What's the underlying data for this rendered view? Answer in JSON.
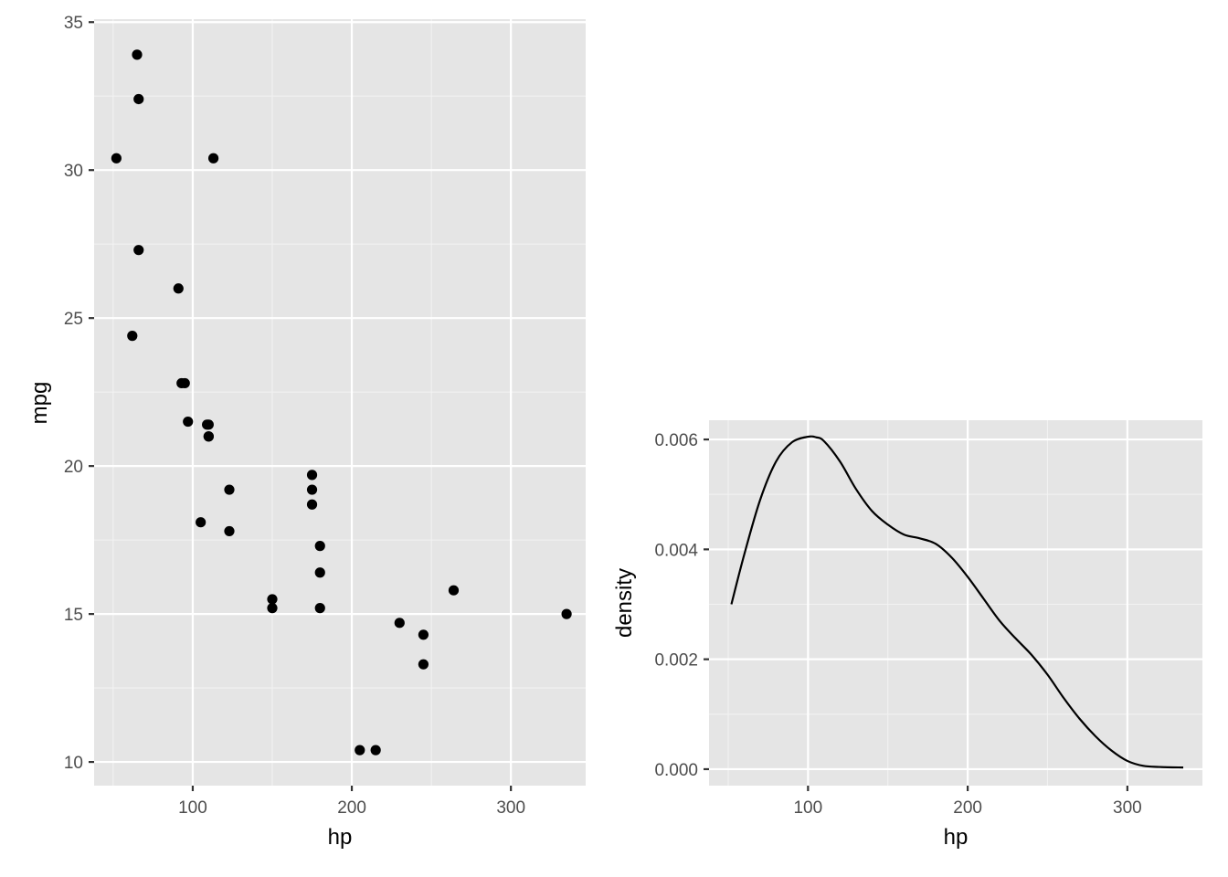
{
  "colors": {
    "panel_background": "#E5E5E5",
    "grid_major": "#FFFFFF",
    "grid_minor": "#F2F2F2",
    "tick_text": "#4D4D4D",
    "axis_ticks": "#333333",
    "marks": "#000000"
  },
  "chart_data": [
    {
      "type": "scatter",
      "xlabel": "hp",
      "ylabel": "mpg",
      "xlim": [
        38,
        347
      ],
      "ylim": [
        9.2,
        35.1
      ],
      "xticks": [
        100,
        200,
        300
      ],
      "xticklabels": [
        "100",
        "200",
        "300"
      ],
      "yticks": [
        10,
        15,
        20,
        25,
        30,
        35
      ],
      "yticklabels": [
        "10",
        "15",
        "20",
        "25",
        "30",
        "35"
      ],
      "grid": true,
      "points": [
        {
          "x": 110,
          "y": 21.0
        },
        {
          "x": 110,
          "y": 21.0
        },
        {
          "x": 93,
          "y": 22.8
        },
        {
          "x": 110,
          "y": 21.4
        },
        {
          "x": 175,
          "y": 18.7
        },
        {
          "x": 105,
          "y": 18.1
        },
        {
          "x": 245,
          "y": 14.3
        },
        {
          "x": 62,
          "y": 24.4
        },
        {
          "x": 95,
          "y": 22.8
        },
        {
          "x": 123,
          "y": 19.2
        },
        {
          "x": 123,
          "y": 17.8
        },
        {
          "x": 180,
          "y": 16.4
        },
        {
          "x": 180,
          "y": 17.3
        },
        {
          "x": 180,
          "y": 15.2
        },
        {
          "x": 205,
          "y": 10.4
        },
        {
          "x": 215,
          "y": 10.4
        },
        {
          "x": 230,
          "y": 14.7
        },
        {
          "x": 66,
          "y": 32.4
        },
        {
          "x": 52,
          "y": 30.4
        },
        {
          "x": 65,
          "y": 33.9
        },
        {
          "x": 97,
          "y": 21.5
        },
        {
          "x": 150,
          "y": 15.5
        },
        {
          "x": 150,
          "y": 15.2
        },
        {
          "x": 245,
          "y": 13.3
        },
        {
          "x": 175,
          "y": 19.2
        },
        {
          "x": 66,
          "y": 27.3
        },
        {
          "x": 91,
          "y": 26.0
        },
        {
          "x": 113,
          "y": 30.4
        },
        {
          "x": 264,
          "y": 15.8
        },
        {
          "x": 175,
          "y": 19.7
        },
        {
          "x": 335,
          "y": 15.0
        },
        {
          "x": 109,
          "y": 21.4
        }
      ]
    },
    {
      "type": "line",
      "xlabel": "hp",
      "ylabel": "density",
      "xlim": [
        38,
        347
      ],
      "ylim": [
        -0.0003,
        0.00635
      ],
      "xticks": [
        100,
        200,
        300
      ],
      "xticklabels": [
        "100",
        "200",
        "300"
      ],
      "yticks": [
        0.0,
        0.002,
        0.004,
        0.006
      ],
      "yticklabels": [
        "0.000",
        "0.002",
        "0.004",
        "0.006"
      ],
      "grid": true,
      "x": [
        52,
        60,
        70,
        80,
        90,
        100,
        105,
        110,
        120,
        130,
        140,
        150,
        160,
        170,
        180,
        190,
        200,
        210,
        220,
        230,
        240,
        250,
        260,
        270,
        280,
        290,
        300,
        310,
        320,
        335
      ],
      "y": [
        0.003,
        0.0039,
        0.0049,
        0.0056,
        0.00595,
        0.00605,
        0.00604,
        0.00597,
        0.0056,
        0.0051,
        0.0047,
        0.00445,
        0.00427,
        0.0042,
        0.0041,
        0.00385,
        0.0035,
        0.0031,
        0.0027,
        0.00238,
        0.00208,
        0.00172,
        0.0013,
        0.00092,
        0.0006,
        0.00034,
        0.00015,
        6e-05,
        4e-05,
        3e-05
      ]
    }
  ]
}
